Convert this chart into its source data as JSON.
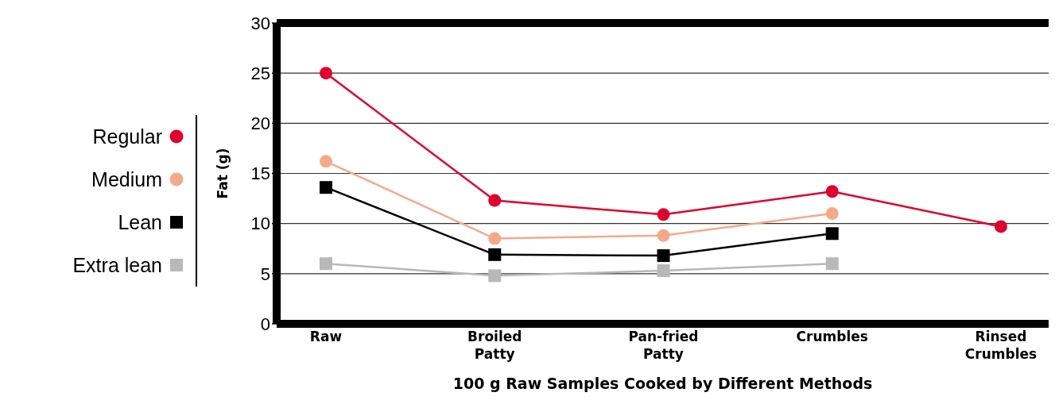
{
  "chart_data": {
    "type": "line",
    "xlabel": "100 g Raw Samples Cooked by Different Methods",
    "ylabel": "Fat (g)",
    "categories": [
      "Raw",
      "Broiled Patty",
      "Pan-fried Patty",
      "Crumbles",
      "Rinsed Crumbles"
    ],
    "series": [
      {
        "name": "Regular",
        "color": "#e0002d",
        "marker": "circle",
        "values": [
          25,
          12.3,
          10.9,
          13.2,
          9.7
        ]
      },
      {
        "name": "Medium",
        "color": "#f4aa8a",
        "marker": "circle",
        "values": [
          16.2,
          8.5,
          8.8,
          11.0,
          null
        ]
      },
      {
        "name": "Lean",
        "color": "#000000",
        "marker": "square",
        "values": [
          13.6,
          6.9,
          6.8,
          9.0,
          null
        ]
      },
      {
        "name": "Extra lean",
        "color": "#b8b8b8",
        "marker": "square",
        "values": [
          6.0,
          4.8,
          5.3,
          6.0,
          null
        ]
      }
    ],
    "ylim": [
      0,
      30
    ],
    "yticks": [
      0,
      5,
      10,
      15,
      20,
      25,
      30
    ],
    "grid": "y",
    "legend": "left",
    "line_style": "solid"
  }
}
